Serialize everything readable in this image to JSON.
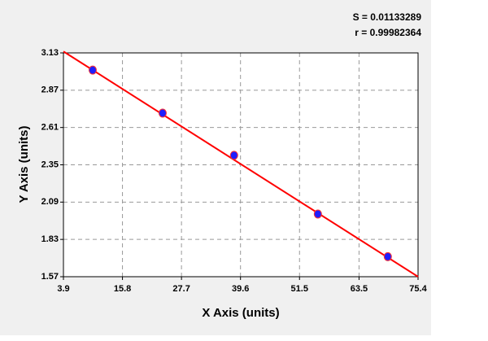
{
  "chart_data": {
    "type": "scatter",
    "annotations": [
      "S = 0.01133289",
      "r = 0.99982364"
    ],
    "x_label": "X Axis (units)",
    "y_label": "Y Axis (units)",
    "xlim": [
      3.9,
      75.4
    ],
    "xticks": [
      3.9,
      15.8,
      27.7,
      39.6,
      51.5,
      63.5,
      75.4
    ],
    "ylim": [
      1.57,
      3.13
    ],
    "yticks": [
      1.57,
      1.83,
      2.09,
      2.35,
      2.61,
      2.87,
      3.13
    ],
    "grid": true,
    "series": [
      {
        "type": "scatter",
        "color": "#1e1eff",
        "x": [
          9.8,
          23.9,
          38.3,
          55.2,
          69.3
        ],
        "values": [
          3.01,
          2.71,
          2.416,
          2.007,
          1.71
        ]
      },
      {
        "type": "line",
        "color": "#ff0000",
        "x": [
          3.9,
          75.4
        ],
        "values": [
          3.14,
          1.57
        ]
      }
    ]
  }
}
